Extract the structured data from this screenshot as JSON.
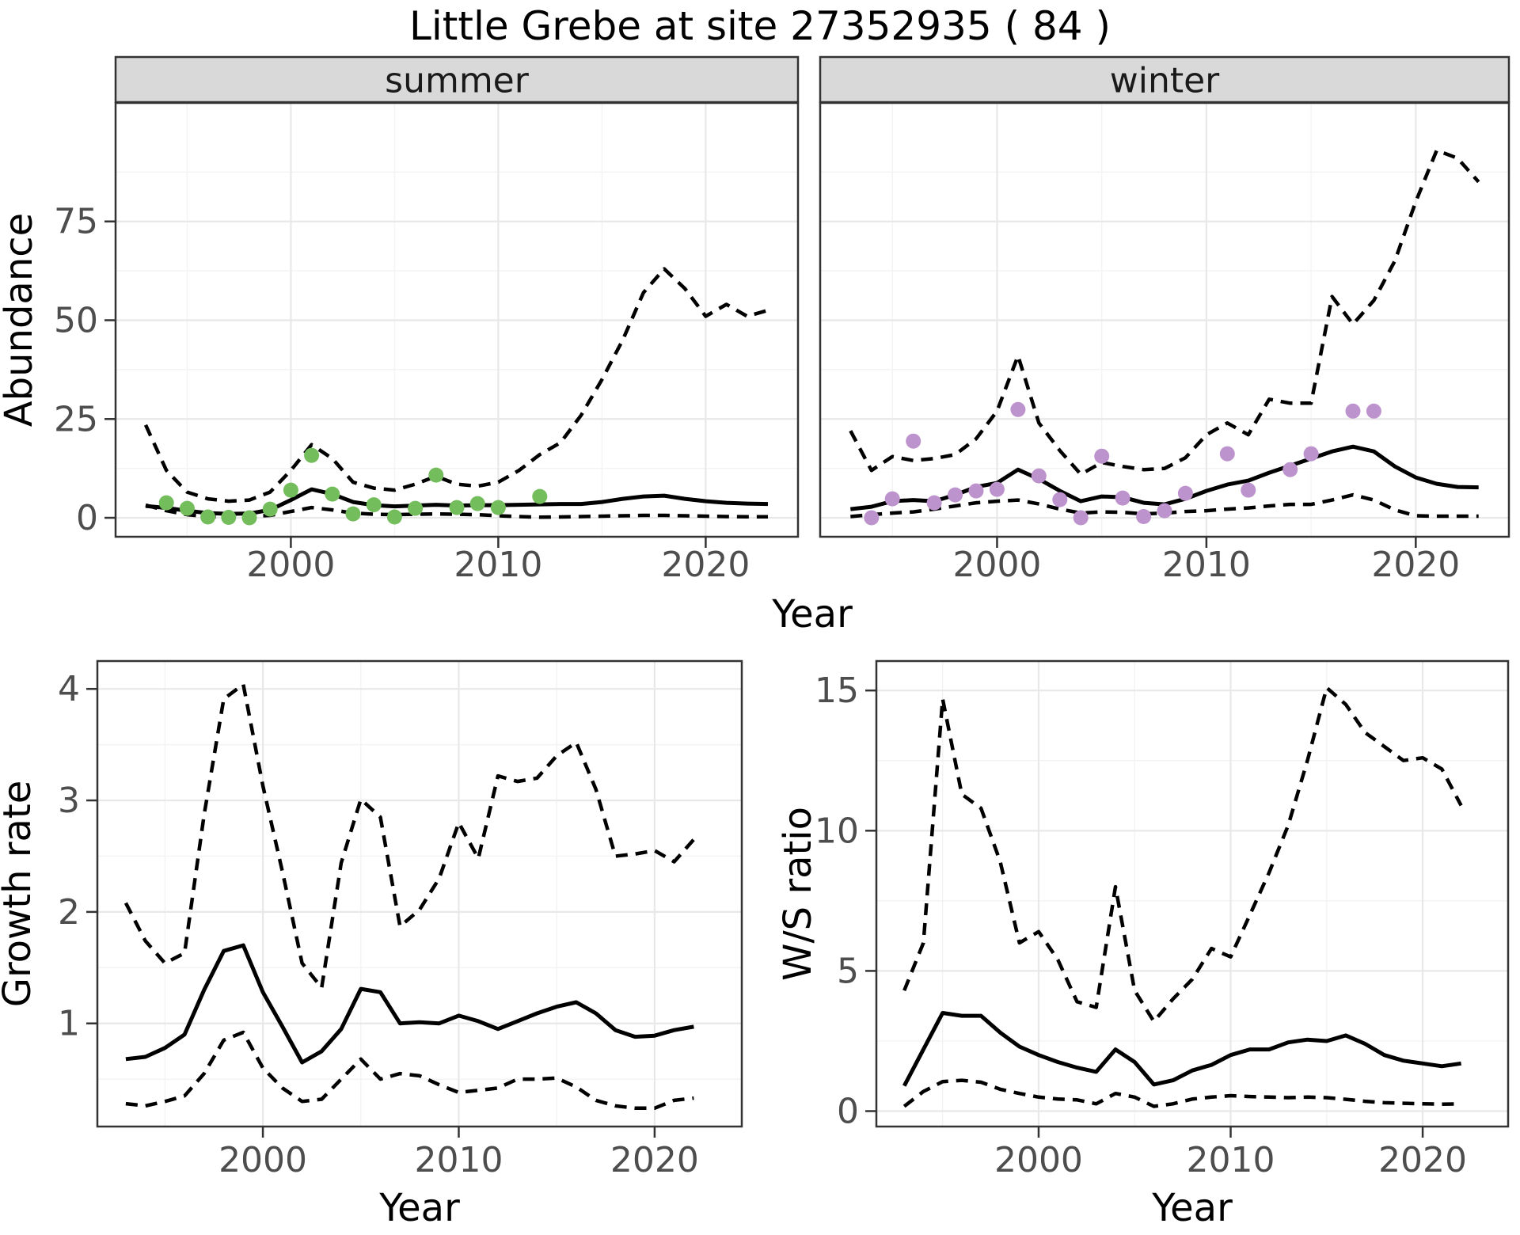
{
  "title": "Little Grebe at site 27352935 ( 84 )",
  "xlabel": "Year",
  "ylabels": {
    "abundance": "Abundance",
    "growth": "Growth rate",
    "ratio": "W/S ratio"
  },
  "facets": {
    "summer": "summer",
    "winter": "winter"
  },
  "colors": {
    "summer_point": "#74bd5c",
    "winter_point": "#bd93cd",
    "line": "#000000",
    "strip_bg": "#d9d9d9",
    "strip_border": "#333333",
    "panel_border": "#333333",
    "grid_major": "#e8e8e8",
    "grid_minor": "#f3f3f3",
    "axis_text": "#4d4d4d",
    "title_text": "#000000"
  },
  "chart_data": [
    {
      "id": "abundance-summer",
      "type": "line",
      "facet_label": "summer",
      "ylabel": "Abundance",
      "xlabel": "Year",
      "x_start": 1993,
      "xlim": [
        1991.55,
        2024.45
      ],
      "ylim": [
        -4.8,
        105.0
      ],
      "x_ticks": [
        2000,
        2010,
        2020
      ],
      "x_minor": [
        1995,
        2005,
        2015
      ],
      "y_ticks": [
        0,
        25,
        50,
        75
      ],
      "y_minor": [
        12.5,
        37.5,
        62.5,
        87.5
      ],
      "grid": true,
      "legend_position": "none",
      "fit": [
        3.0,
        2.5,
        1.8,
        1.2,
        1.0,
        1.1,
        2.0,
        4.5,
        7.2,
        6.0,
        4.0,
        3.2,
        2.9,
        3.1,
        3.3,
        3.1,
        3.2,
        3.2,
        3.3,
        3.4,
        3.5,
        3.5,
        4.0,
        4.8,
        5.4,
        5.6,
        4.8,
        4.2,
        3.8,
        3.6,
        3.5
      ],
      "upper": [
        23.5,
        12,
        6.5,
        4.8,
        4.2,
        4.5,
        6.5,
        12,
        18.5,
        15,
        9,
        7.5,
        7,
        8.5,
        10.5,
        8.5,
        8,
        9,
        12,
        16,
        19,
        26,
        35,
        45,
        57,
        63,
        58,
        51,
        54,
        51,
        52.5
      ],
      "lower": [
        3.2,
        1.8,
        0.8,
        0.3,
        0.2,
        0.3,
        0.6,
        1.6,
        2.6,
        2.0,
        1.2,
        0.9,
        0.8,
        0.9,
        1.0,
        0.9,
        0.8,
        0.5,
        0.3,
        0.15,
        0.2,
        0.3,
        0.4,
        0.5,
        0.6,
        0.6,
        0.5,
        0.4,
        0.3,
        0.25,
        0.25
      ],
      "points": {
        "x": [
          1994,
          1995,
          1996,
          1997,
          1998,
          1999,
          2000,
          2001,
          2002,
          2003,
          2004,
          2005,
          2006,
          2007,
          2008,
          2009,
          2010,
          2012
        ],
        "y": [
          3.8,
          2.4,
          0.2,
          0.1,
          0.0,
          2.2,
          7.0,
          15.8,
          6.0,
          1.0,
          3.3,
          0.2,
          2.4,
          10.8,
          2.6,
          3.6,
          2.6,
          5.4
        ]
      },
      "point_color": "#74bd5c"
    },
    {
      "id": "abundance-winter",
      "type": "line",
      "facet_label": "winter",
      "ylabel": "Abundance",
      "xlabel": "Year",
      "x_start": 1993,
      "xlim": [
        1991.55,
        2024.45
      ],
      "ylim": [
        -4.8,
        105.0
      ],
      "x_ticks": [
        2000,
        2010,
        2020
      ],
      "x_minor": [
        1995,
        2005,
        2015
      ],
      "y_ticks": [
        0,
        25,
        50,
        75
      ],
      "y_minor": [
        12.5,
        37.5,
        62.5,
        87.5
      ],
      "grid": true,
      "legend_position": "none",
      "fit": [
        2.2,
        2.8,
        4.2,
        4.5,
        4.2,
        5.8,
        7.8,
        8.8,
        12.2,
        9.8,
        6.8,
        4.2,
        5.4,
        5.2,
        3.8,
        3.4,
        4.8,
        6.8,
        8.4,
        9.4,
        11.4,
        13.2,
        15.0,
        16.8,
        18.0,
        16.8,
        13.0,
        10.2,
        8.6,
        7.8,
        7.7
      ],
      "upper": [
        22,
        12,
        15.5,
        14.5,
        15,
        16,
        20,
        27,
        41,
        24,
        17,
        11,
        14,
        13,
        12.2,
        12.5,
        15.2,
        21,
        24,
        21,
        30,
        29,
        29,
        56,
        49,
        55,
        65,
        80,
        93,
        91,
        85
      ],
      "lower": [
        0.3,
        0.8,
        1.2,
        1.5,
        2.2,
        3.0,
        3.8,
        4.2,
        4.5,
        3.5,
        2.2,
        1.2,
        1.5,
        1.4,
        1.0,
        1.2,
        1.6,
        1.8,
        2.2,
        2.5,
        3.0,
        3.4,
        3.4,
        4.5,
        5.8,
        4.5,
        2.0,
        0.5,
        0.4,
        0.4,
        0.4
      ],
      "points": {
        "x": [
          1994,
          1995,
          1996,
          1997,
          1998,
          1999,
          2000,
          2001,
          2002,
          2003,
          2004,
          2005,
          2006,
          2007,
          2008,
          2009,
          2011,
          2012,
          2014,
          2015,
          2017,
          2018
        ],
        "y": [
          0.0,
          4.8,
          19.4,
          3.8,
          5.8,
          6.8,
          7.2,
          27.4,
          10.6,
          4.6,
          0.0,
          15.6,
          5.0,
          0.3,
          1.8,
          6.2,
          16.2,
          7.0,
          12.2,
          16.2,
          27.0,
          27.0
        ]
      },
      "point_color": "#bd93cd"
    },
    {
      "id": "growth-rate",
      "type": "line",
      "facet_label": null,
      "ylabel": "Growth rate",
      "xlabel": "Year",
      "x_start": 1993,
      "xlim": [
        1991.55,
        2024.45
      ],
      "ylim": [
        0.075,
        4.25
      ],
      "x_ticks": [
        2000,
        2010,
        2020
      ],
      "x_minor": [
        1995,
        2005,
        2015
      ],
      "y_ticks": [
        1,
        2,
        3,
        4
      ],
      "y_minor": [
        0.5,
        1.5,
        2.5,
        3.5
      ],
      "grid": true,
      "legend_position": "none",
      "fit": [
        0.68,
        0.7,
        0.78,
        0.9,
        1.3,
        1.65,
        1.7,
        1.28,
        0.97,
        0.65,
        0.75,
        0.95,
        1.31,
        1.28,
        1.0,
        1.01,
        1.0,
        1.07,
        1.02,
        0.95,
        1.02,
        1.09,
        1.15,
        1.19,
        1.09,
        0.94,
        0.88,
        0.89,
        0.94,
        0.97
      ],
      "upper": [
        2.08,
        1.74,
        1.54,
        1.63,
        2.87,
        3.91,
        4.04,
        3.13,
        2.36,
        1.54,
        1.32,
        2.44,
        3.01,
        2.85,
        1.87,
        2.02,
        2.3,
        2.8,
        2.48,
        3.22,
        3.17,
        3.2,
        3.4,
        3.52,
        3.1,
        2.5,
        2.52,
        2.55,
        2.45,
        2.65
      ],
      "lower": [
        0.28,
        0.26,
        0.3,
        0.35,
        0.55,
        0.85,
        0.92,
        0.6,
        0.42,
        0.3,
        0.32,
        0.5,
        0.68,
        0.5,
        0.55,
        0.53,
        0.45,
        0.38,
        0.4,
        0.42,
        0.5,
        0.5,
        0.51,
        0.43,
        0.31,
        0.26,
        0.24,
        0.24,
        0.31,
        0.33
      ],
      "points": {
        "x": [],
        "y": []
      },
      "point_color": "#000000"
    },
    {
      "id": "ws-ratio",
      "type": "line",
      "facet_label": null,
      "ylabel": "W/S ratio",
      "xlabel": "Year",
      "x_start": 1993,
      "xlim": [
        1991.55,
        2024.45
      ],
      "ylim": [
        -0.55,
        16.05
      ],
      "x_ticks": [
        2000,
        2010,
        2020
      ],
      "x_minor": [
        1995,
        2005,
        2015
      ],
      "y_ticks": [
        0,
        5,
        10,
        15
      ],
      "y_minor": [
        2.5,
        7.5,
        12.5
      ],
      "grid": true,
      "legend_position": "none",
      "fit": [
        0.9,
        2.2,
        3.5,
        3.4,
        3.4,
        2.8,
        2.3,
        2.0,
        1.75,
        1.55,
        1.4,
        2.2,
        1.75,
        0.95,
        1.1,
        1.45,
        1.65,
        2.0,
        2.2,
        2.2,
        2.45,
        2.55,
        2.5,
        2.7,
        2.4,
        2.0,
        1.8,
        1.7,
        1.6,
        1.7
      ],
      "upper": [
        4.3,
        6.0,
        14.7,
        11.3,
        10.8,
        8.9,
        6.0,
        6.4,
        5.4,
        3.9,
        3.7,
        8.0,
        4.3,
        3.2,
        4.0,
        4.7,
        5.8,
        5.5,
        7.0,
        8.5,
        10.2,
        12.5,
        15.1,
        14.5,
        13.5,
        13.0,
        12.5,
        12.6,
        12.2,
        10.9
      ],
      "lower": [
        0.17,
        0.7,
        1.05,
        1.1,
        1.03,
        0.78,
        0.63,
        0.5,
        0.43,
        0.4,
        0.26,
        0.63,
        0.5,
        0.17,
        0.26,
        0.43,
        0.5,
        0.55,
        0.52,
        0.5,
        0.48,
        0.5,
        0.48,
        0.42,
        0.35,
        0.3,
        0.28,
        0.26,
        0.25,
        0.26
      ],
      "points": {
        "x": [],
        "y": []
      },
      "point_color": "#000000"
    }
  ]
}
